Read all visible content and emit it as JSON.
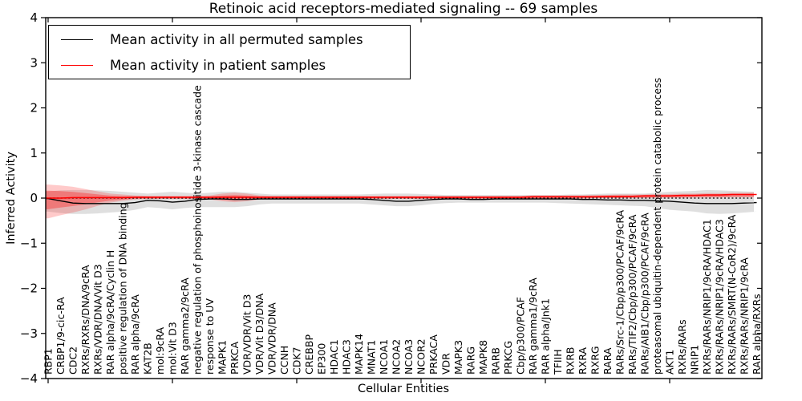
{
  "title": "Retinoic acid receptors-mediated signaling -- 69 samples",
  "axes": {
    "ylabel": "Inferred Activity",
    "xlabel": "Cellular Entities",
    "ytick_labels": [
      "4",
      "3",
      "2",
      "1",
      "0",
      "−1",
      "−2",
      "−3",
      "−4"
    ],
    "ytick_values": [
      4,
      3,
      2,
      1,
      0,
      -1,
      -2,
      -3,
      -4
    ]
  },
  "legend": {
    "entries": [
      {
        "label": "Mean activity in all permuted samples",
        "color": "#000000"
      },
      {
        "label": "Mean activity in patient samples",
        "color": "#ff0000"
      }
    ]
  },
  "chart_data": {
    "type": "line",
    "title": "Retinoic acid receptors-mediated signaling -- 69 samples",
    "xlabel": "Cellular Entities",
    "ylabel": "Inferred Activity",
    "ylim": [
      -4,
      4
    ],
    "grid": false,
    "legend_position": "upper left",
    "zero_line": {
      "style": "dotted",
      "color": "#000000",
      "y": 0
    },
    "x_tick_positions": [
      0,
      10,
      20,
      30,
      40,
      50
    ],
    "categories": [
      "RBP1",
      "CRBP1/9-cic-RA",
      "CDC2",
      "RXRs/RXRs/DNA/9cRA",
      "RXRs/VDR/DNA/Vit D3",
      "RAR alpha/9cRA/Cyclin H",
      "positive regulation of DNA binding",
      "RAR alpha/9cRA",
      "KAT2B",
      "mol:9cRA",
      "mol:Vit D3",
      "RAR gamma2/9cRA",
      "negative regulation of phosphoinositide 3-kinase cascade",
      "response to UV",
      "MAPK1",
      "PRKCA",
      "VDR/VDR/Vit D3",
      "VDR/Vit D3/DNA",
      "VDR/VDR/DNA",
      "CCNH",
      "CDK7",
      "CREBBP",
      "EP300",
      "HDAC1",
      "HDAC3",
      "MAPK14",
      "MNAT1",
      "NCOA1",
      "NCOA2",
      "NCOA3",
      "NCOR2",
      "PRKACA",
      "VDR",
      "MAPK3",
      "RARG",
      "MAPK8",
      "RARB",
      "PRKCG",
      "Cbp/p300/PCAF",
      "RAR gamma1/9cRA",
      "RAR alpha/Jnk1",
      "TFIIH",
      "RXRB",
      "RXRA",
      "RXRG",
      "RARA",
      "RARs/Src-1/Cbp/p300/PCAF/9cRA",
      "RARs/TIF2/Cbp/p300/PCAF/9cRA",
      "RARs/AIB1/Cbp/p300/PCAF/9cRA",
      "proteasomal ubiquitin-dependent protein catabolic process",
      "AKT1",
      "RXRs/RARs",
      "NRIP1",
      "RXRs/RARs/NRIP1/9cRA/HDAC1",
      "RXRs/RARs/NRIP1/9cRA/HDAC3",
      "RXRs/RARs/SMRT(N-CoR2)/9cRA",
      "RXRs/RARs/NRIP1/9cRA",
      "RAR alpha/RXRs"
    ],
    "series": [
      {
        "name": "Mean activity in all permuted samples",
        "color": "#000000",
        "values": [
          -0.01,
          -0.06,
          -0.11,
          -0.12,
          -0.12,
          -0.12,
          -0.12,
          -0.1,
          -0.05,
          -0.06,
          -0.09,
          -0.07,
          -0.03,
          -0.02,
          -0.02,
          -0.03,
          -0.03,
          -0.02,
          -0.02,
          -0.02,
          -0.02,
          -0.02,
          -0.02,
          -0.02,
          -0.02,
          -0.02,
          -0.03,
          -0.05,
          -0.07,
          -0.07,
          -0.05,
          -0.03,
          -0.02,
          -0.02,
          -0.03,
          -0.03,
          -0.02,
          -0.02,
          -0.02,
          -0.02,
          -0.02,
          -0.02,
          -0.02,
          -0.03,
          -0.03,
          -0.04,
          -0.04,
          -0.05,
          -0.05,
          -0.06,
          -0.07,
          -0.09,
          -0.11,
          -0.12,
          -0.12,
          -0.12,
          -0.11,
          -0.1
        ]
      },
      {
        "name": "Mean activity in patient samples",
        "color": "#ff0000",
        "values": [
          0.0,
          0.0,
          0.01,
          0.01,
          0.01,
          0.01,
          0.01,
          0.02,
          0.02,
          0.02,
          0.02,
          0.02,
          0.02,
          0.02,
          0.02,
          0.02,
          0.02,
          0.02,
          0.02,
          0.02,
          0.02,
          0.02,
          0.02,
          0.02,
          0.02,
          0.02,
          0.02,
          0.02,
          0.02,
          0.02,
          0.02,
          0.02,
          0.02,
          0.02,
          0.02,
          0.02,
          0.02,
          0.02,
          0.02,
          0.03,
          0.03,
          0.03,
          0.03,
          0.03,
          0.03,
          0.04,
          0.04,
          0.04,
          0.05,
          0.05,
          0.05,
          0.06,
          0.06,
          0.07,
          0.07,
          0.08,
          0.08,
          0.08
        ]
      }
    ],
    "bands": [
      {
        "name": "permuted samples range",
        "color": "#808080",
        "alpha": 0.25,
        "hi": [
          0.15,
          0.17,
          0.18,
          0.18,
          0.17,
          0.16,
          0.14,
          0.12,
          0.1,
          0.12,
          0.14,
          0.12,
          0.1,
          0.12,
          0.14,
          0.14,
          0.12,
          0.1,
          0.08,
          0.08,
          0.08,
          0.08,
          0.08,
          0.08,
          0.08,
          0.08,
          0.09,
          0.1,
          0.1,
          0.1,
          0.09,
          0.08,
          0.07,
          0.07,
          0.07,
          0.07,
          0.07,
          0.07,
          0.07,
          0.07,
          0.07,
          0.07,
          0.08,
          0.08,
          0.09,
          0.1,
          0.1,
          0.1,
          0.1,
          0.12,
          0.14,
          0.15,
          0.16,
          0.18,
          0.17,
          0.16,
          0.15,
          0.14
        ],
        "lo": [
          -0.3,
          -0.33,
          -0.35,
          -0.35,
          -0.34,
          -0.32,
          -0.3,
          -0.26,
          -0.2,
          -0.22,
          -0.25,
          -0.22,
          -0.2,
          -0.2,
          -0.2,
          -0.2,
          -0.18,
          -0.14,
          -0.12,
          -0.12,
          -0.12,
          -0.12,
          -0.12,
          -0.12,
          -0.12,
          -0.12,
          -0.14,
          -0.16,
          -0.18,
          -0.18,
          -0.16,
          -0.13,
          -0.11,
          -0.1,
          -0.1,
          -0.1,
          -0.1,
          -0.1,
          -0.1,
          -0.1,
          -0.1,
          -0.11,
          -0.12,
          -0.13,
          -0.14,
          -0.15,
          -0.16,
          -0.17,
          -0.18,
          -0.22,
          -0.26,
          -0.28,
          -0.3,
          -0.34,
          -0.35,
          -0.34,
          -0.32,
          -0.3
        ]
      },
      {
        "name": "patient samples range",
        "color": "#ff2020",
        "alpha": 0.24,
        "hi": [
          0.3,
          0.28,
          0.25,
          0.2,
          0.15,
          0.1,
          0.08,
          0.06,
          0.05,
          0.05,
          0.05,
          0.05,
          0.05,
          0.06,
          0.1,
          0.12,
          0.1,
          0.06,
          0.05,
          0.05,
          0.05,
          0.05,
          0.05,
          0.05,
          0.05,
          0.05,
          0.05,
          0.05,
          0.05,
          0.05,
          0.05,
          0.05,
          0.05,
          0.05,
          0.05,
          0.05,
          0.05,
          0.05,
          0.05,
          0.06,
          0.06,
          0.06,
          0.06,
          0.06,
          0.07,
          0.07,
          0.08,
          0.08,
          0.08,
          0.09,
          0.09,
          0.1,
          0.1,
          0.11,
          0.11,
          0.12,
          0.12,
          0.13
        ],
        "lo": [
          -0.45,
          -0.38,
          -0.32,
          -0.25,
          -0.17,
          -0.1,
          -0.06,
          -0.03,
          -0.02,
          -0.02,
          -0.02,
          -0.02,
          -0.02,
          -0.03,
          -0.07,
          -0.09,
          -0.07,
          -0.03,
          -0.02,
          -0.02,
          -0.02,
          -0.02,
          -0.02,
          -0.02,
          -0.02,
          -0.02,
          -0.02,
          -0.02,
          -0.02,
          -0.02,
          -0.02,
          -0.02,
          -0.02,
          -0.02,
          -0.02,
          -0.02,
          -0.02,
          -0.02,
          -0.02,
          -0.01,
          -0.01,
          -0.01,
          -0.01,
          -0.01,
          0.0,
          0.0,
          0.0,
          0.01,
          0.01,
          0.02,
          0.02,
          0.02,
          0.03,
          0.03,
          0.03,
          0.04,
          0.04,
          0.04
        ]
      }
    ]
  }
}
